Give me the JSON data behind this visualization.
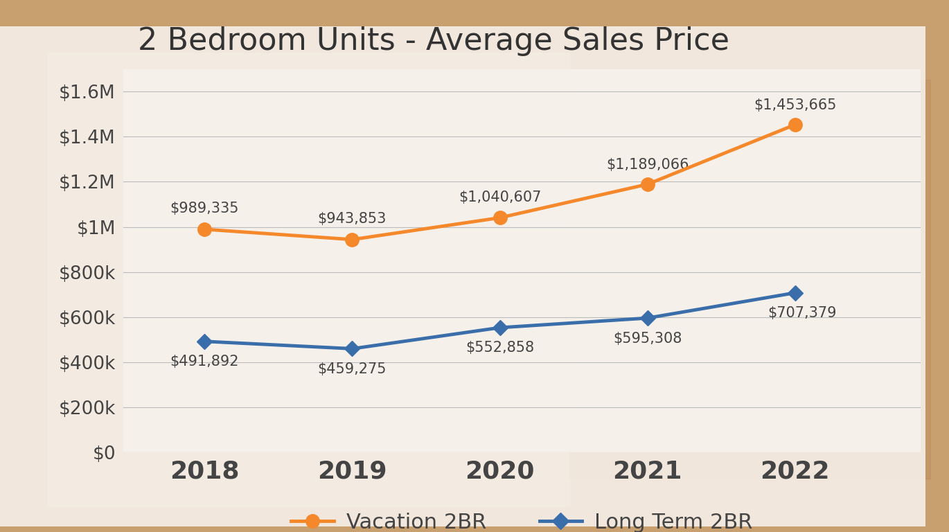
{
  "title": "2 Bedroom Units - Average Sales Price",
  "years": [
    2018,
    2019,
    2020,
    2021,
    2022
  ],
  "vacation": [
    989335,
    943853,
    1040607,
    1189066,
    1453665
  ],
  "longterm": [
    491892,
    459275,
    552858,
    595308,
    707379
  ],
  "vacation_labels": [
    "$989,335",
    "$943,853",
    "$1,040,607",
    "$1,189,066",
    "$1,453,665"
  ],
  "longterm_labels": [
    "$491,892",
    "$459,275",
    "$552,858",
    "$595,308",
    "$707,379"
  ],
  "vacation_color": "#F5882A",
  "longterm_color": "#3A6EAA",
  "ylim": [
    0,
    1700000
  ],
  "yticks": [
    0,
    200000,
    400000,
    600000,
    800000,
    1000000,
    1200000,
    1400000,
    1600000
  ],
  "ytick_labels": [
    "$0",
    "$200k",
    "$400k",
    "$600k",
    "$800k",
    "$1M",
    "$1.2M",
    "$1.4M",
    "$1.6M"
  ],
  "title_fontsize": 32,
  "axis_tick_fontsize": 19,
  "label_fontsize": 15,
  "legend_fontsize": 22,
  "year_fontsize": 26,
  "line_width": 3.5,
  "marker_size": 14,
  "grid_color": "#bbbbbb",
  "text_color": "#444444",
  "legend_vacation": "Vacation 2BR",
  "legend_longterm": "Long Term 2BR",
  "bg_color_top": "#e8d9b8",
  "bg_color_bottom": "#c8a060",
  "white_panel_color": "#f5f0e8",
  "white_panel_alpha": 0.88
}
